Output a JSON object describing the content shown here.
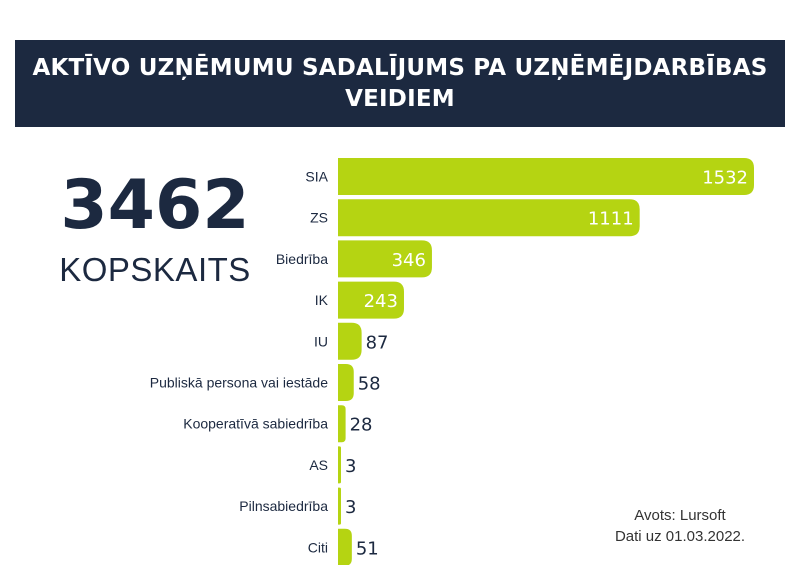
{
  "colors": {
    "header_bg": "#1c2940",
    "bar": "#b5d412",
    "text_dark": "#1c2940",
    "text_light": "#ffffff"
  },
  "header": {
    "title_line1": "AKTĪVO UZŅĒMUMU SADALĪJUMS PA UZŅĒMĒJDARBĪBAS",
    "title_line2": "VEIDIEM"
  },
  "summary": {
    "total": "3462",
    "total_label": "KOPSKAITS"
  },
  "source": {
    "line1": "Avots: Lursoft",
    "line2": "Dati uz 01.03.2022."
  },
  "chart_data": {
    "type": "bar",
    "orientation": "horizontal",
    "title": "AKTĪVO UZŅĒMUMU SADALĪJUMS PA UZŅĒMĒJDARBĪBAS VEIDIEM",
    "categories": [
      "SIA",
      "ZS",
      "Biedrība",
      "IK",
      "IU",
      "Publiskā persona vai iestāde",
      "Kooperatīvā sabiedrība",
      "AS",
      "Pilnsabiedrība",
      "Citi"
    ],
    "values": [
      1532,
      1111,
      346,
      243,
      87,
      58,
      28,
      3,
      3,
      51
    ],
    "grid": false,
    "legend": "none",
    "data_labels": true
  }
}
